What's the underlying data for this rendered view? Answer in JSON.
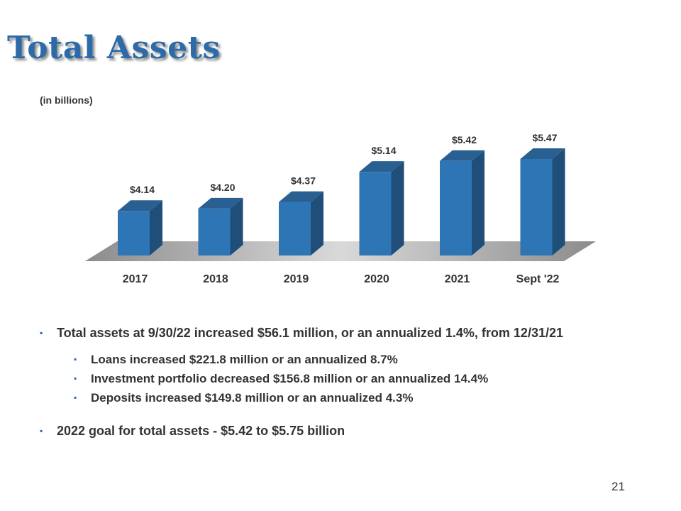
{
  "slide": {
    "title": "Total Assets",
    "units_note": "(in billions)",
    "page_number": "21"
  },
  "chart_data": {
    "type": "bar",
    "categories": [
      "2017",
      "2018",
      "2019",
      "2020",
      "2021",
      "Sept '22"
    ],
    "values": [
      4.14,
      4.2,
      4.37,
      5.14,
      5.42,
      5.47
    ],
    "value_labels": [
      "$4.14",
      "$4.20",
      "$4.37",
      "$5.14",
      "$5.42",
      "$5.47"
    ],
    "title": "",
    "xlabel": "",
    "ylabel": "",
    "style": "3d",
    "grid": false,
    "colors": {
      "bar_front": "#2e75b6",
      "bar_side": "#1f4e79",
      "bar_top": "#2a5f91",
      "floor": "#a6a6a6"
    }
  },
  "bullets": {
    "main": "Total assets at 9/30/22 increased $56.1 million, or an annualized 1.4%, from 12/31/21",
    "sub": [
      "Loans increased $221.8 million or an annualized 8.7%",
      "Investment portfolio decreased $156.8 million or an annualized 14.4%",
      "Deposits increased $149.8 million or an annualized 4.3%"
    ],
    "goal": "2022 goal for total assets - $5.42 to $5.75 billion"
  },
  "icons": {
    "bullet": "square-bullet-icon",
    "bullet_glyph": "▪"
  }
}
